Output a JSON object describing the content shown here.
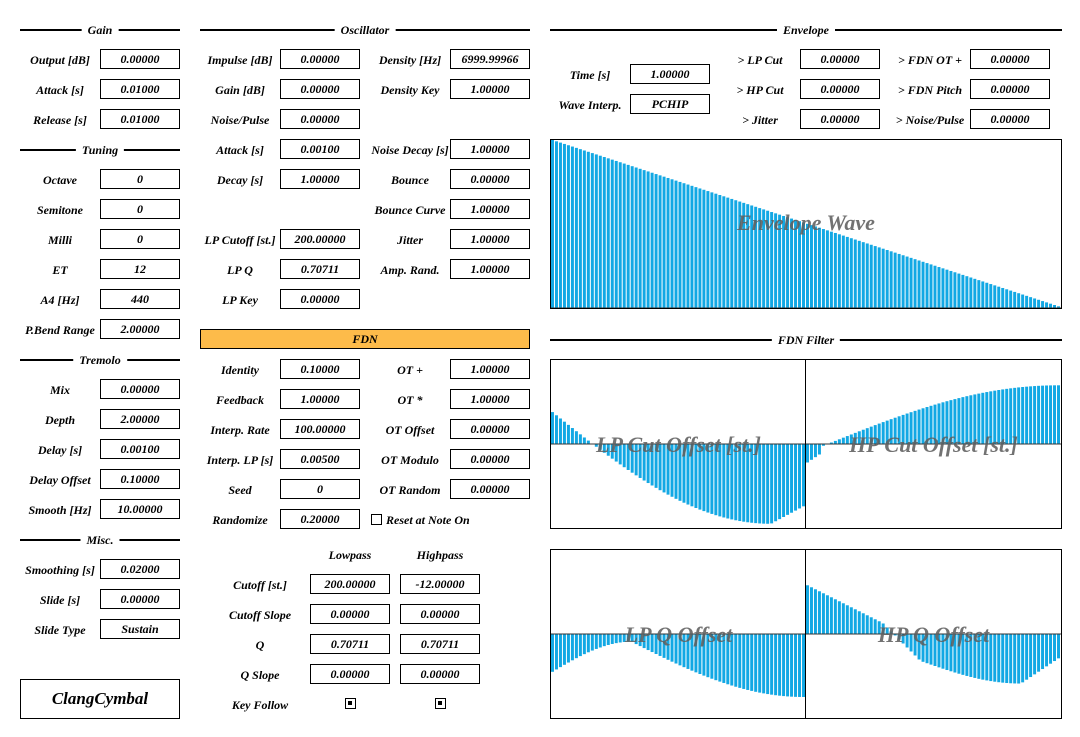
{
  "accent": "#fdbb4a",
  "bar_color": "#12a8e4",
  "plugin_name": "ClangCymbal",
  "sections": {
    "gain": "Gain",
    "tuning": "Tuning",
    "tremolo": "Tremolo",
    "misc": "Misc.",
    "oscillator": "Oscillator",
    "fdn": "FDN",
    "envelope": "Envelope",
    "fdn_filter": "FDN Filter"
  },
  "gain": [
    {
      "label": "Output [dB]",
      "value": "0.00000"
    },
    {
      "label": "Attack [s]",
      "value": "0.01000"
    },
    {
      "label": "Release [s]",
      "value": "0.01000"
    }
  ],
  "tuning": [
    {
      "label": "Octave",
      "value": "0"
    },
    {
      "label": "Semitone",
      "value": "0"
    },
    {
      "label": "Milli",
      "value": "0"
    },
    {
      "label": "ET",
      "value": "12"
    },
    {
      "label": "A4 [Hz]",
      "value": "440"
    },
    {
      "label": "P.Bend Range",
      "value": "2.00000"
    }
  ],
  "tremolo": [
    {
      "label": "Mix",
      "value": "0.00000"
    },
    {
      "label": "Depth",
      "value": "2.00000"
    },
    {
      "label": "Delay [s]",
      "value": "0.00100"
    },
    {
      "label": "Delay Offset",
      "value": "0.10000"
    },
    {
      "label": "Smooth [Hz]",
      "value": "10.00000"
    }
  ],
  "misc": [
    {
      "label": "Smoothing [s]",
      "value": "0.02000"
    },
    {
      "label": "Slide [s]",
      "value": "0.00000"
    },
    {
      "label": "Slide Type",
      "value": "Sustain"
    }
  ],
  "osc_left": [
    {
      "label": "Impulse [dB]",
      "value": "0.00000"
    },
    {
      "label": "Gain [dB]",
      "value": "0.00000"
    },
    {
      "label": "Noise/Pulse",
      "value": "0.00000"
    },
    {
      "label": "Attack [s]",
      "value": "0.00100"
    },
    {
      "label": "Decay [s]",
      "value": "1.00000"
    },
    null,
    {
      "label": "LP Cutoff [st.]",
      "value": "200.00000"
    },
    {
      "label": "LP Q",
      "value": "0.70711"
    },
    {
      "label": "LP Key",
      "value": "0.00000"
    }
  ],
  "osc_right": [
    {
      "label": "Density [Hz]",
      "value": "6999.99966"
    },
    {
      "label": "Density Key",
      "value": "1.00000"
    },
    null,
    {
      "label": "Noise Decay [s]",
      "value": "1.00000"
    },
    {
      "label": "Bounce",
      "value": "0.00000"
    },
    {
      "label": "Bounce Curve",
      "value": "1.00000"
    },
    {
      "label": "Jitter",
      "value": "1.00000"
    },
    {
      "label": "Amp. Rand.",
      "value": "1.00000"
    }
  ],
  "fdn_left": [
    {
      "label": "Identity",
      "value": "0.10000"
    },
    {
      "label": "Feedback",
      "value": "1.00000"
    },
    {
      "label": "Interp. Rate",
      "value": "100.00000"
    },
    {
      "label": "Interp. LP [s]",
      "value": "0.00500"
    },
    {
      "label": "Seed",
      "value": "0"
    },
    {
      "label": "Randomize",
      "value": "0.20000"
    }
  ],
  "fdn_right": [
    {
      "label": "OT +",
      "value": "1.00000"
    },
    {
      "label": "OT *",
      "value": "1.00000"
    },
    {
      "label": "OT Offset",
      "value": "0.00000"
    },
    {
      "label": "OT Modulo",
      "value": "0.00000"
    },
    {
      "label": "OT Random",
      "value": "0.00000"
    }
  ],
  "reset_note_on": {
    "label": "Reset at Note On",
    "checked": false
  },
  "filter_table": {
    "col_lowpass": "Lowpass",
    "col_highpass": "Highpass",
    "rows": [
      {
        "label": "Cutoff [st.]",
        "lowpass": "200.00000",
        "highpass": "-12.00000"
      },
      {
        "label": "Cutoff Slope",
        "lowpass": "0.00000",
        "highpass": "0.00000"
      },
      {
        "label": "Q",
        "lowpass": "0.70711",
        "highpass": "0.70711"
      },
      {
        "label": "Q Slope",
        "lowpass": "0.00000",
        "highpass": "0.00000"
      }
    ],
    "key_follow_label": "Key Follow",
    "key_follow_lowpass": true,
    "key_follow_highpass": true
  },
  "envelope": {
    "time_label": "Time [s]",
    "time_value": "1.00000",
    "interp_label": "Wave Interp.",
    "interp_value": "PCHIP",
    "mods_mid": [
      {
        "label": "> LP Cut",
        "value": "0.00000"
      },
      {
        "label": "> HP Cut",
        "value": "0.00000"
      },
      {
        "label": "> Jitter",
        "value": "0.00000"
      }
    ],
    "mods_right": [
      {
        "label": "> FDN OT +",
        "value": "0.00000"
      },
      {
        "label": "> FDN Pitch",
        "value": "0.00000"
      },
      {
        "label": "> Noise/Pulse",
        "value": "0.00000"
      }
    ],
    "wave_label": "Envelope Wave"
  },
  "view_labels": {
    "lp_cut": "LP Cut Offset [st.]",
    "hp_cut": "HP Cut Offset [st.]",
    "lp_q": "LP Q Offset",
    "hp_q": "HP Q Offset"
  }
}
